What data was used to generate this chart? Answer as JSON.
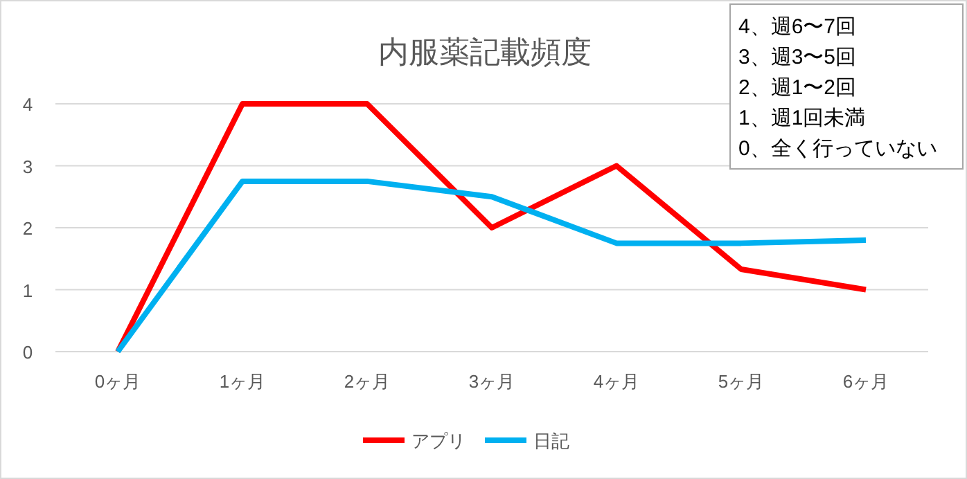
{
  "chart_data": {
    "type": "line",
    "title": "内服薬記載頻度",
    "categories": [
      "0ヶ月",
      "1ヶ月",
      "2ヶ月",
      "3ヶ月",
      "4ヶ月",
      "5ヶ月",
      "6ヶ月"
    ],
    "series": [
      {
        "name": "アプリ",
        "color": "#ff0000",
        "values": [
          0,
          4,
          4,
          2,
          3,
          1.33,
          1
        ]
      },
      {
        "name": "日記",
        "color": "#00b0f0",
        "values": [
          0,
          2.75,
          2.75,
          2.5,
          1.75,
          1.75,
          1.8
        ]
      }
    ],
    "ylim": [
      0,
      4
    ],
    "yticks": [
      0,
      1,
      2,
      3,
      4
    ],
    "grid": "y",
    "legend": "bottom",
    "marker": "none",
    "line_style": "solid",
    "annotations": [
      "4、週6〜7回",
      "3、週3〜5回",
      "2、週1〜2回",
      "1、週1回未満",
      "0、全く行っていない"
    ]
  }
}
